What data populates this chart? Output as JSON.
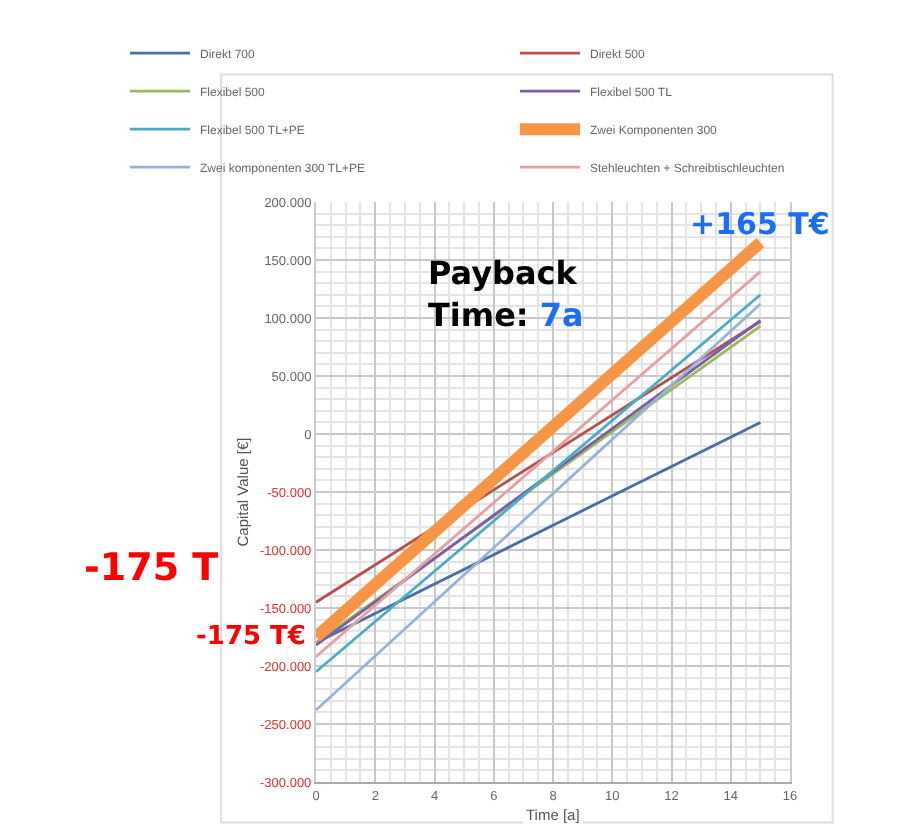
{
  "chart_data": {
    "type": "line",
    "xlabel": "Time [a]",
    "ylabel": "Capital Value [€]",
    "x": [
      0,
      15
    ],
    "series": [
      {
        "name": "Direkt 700",
        "color": "#4a6fa5",
        "values": [
          -180000,
          10000
        ]
      },
      {
        "name": "Direkt 500",
        "color": "#b5504f",
        "values": [
          -145000,
          97000
        ]
      },
      {
        "name": "Flexibel 500",
        "color": "#9bbb59",
        "values": [
          -180000,
          93000
        ]
      },
      {
        "name": "Flexibel 500 TL",
        "color": "#7a5ea8",
        "values": [
          -182000,
          98000
        ]
      },
      {
        "name": "Flexibel 500 TL+PE",
        "color": "#4bacc6",
        "values": [
          -205000,
          120000
        ]
      },
      {
        "name": "Zwei Komponenten 300",
        "color": "#f79646",
        "values": [
          -175000,
          165000
        ]
      },
      {
        "name": "Zwei komponenten 300 TL+PE",
        "color": "#95b3d7",
        "values": [
          -238000,
          112000
        ]
      },
      {
        "name": "Stehleuchten + Schreibtischleuchten",
        "color": "#e6a0a0",
        "values": [
          -192000,
          140000
        ]
      }
    ],
    "xlim": [
      0,
      16
    ],
    "xticks": [
      0,
      2,
      4,
      6,
      8,
      10,
      12,
      14,
      16
    ],
    "ylim": [
      -300000,
      200000
    ],
    "yticks": [
      {
        "value": -300000,
        "label": "-300.000"
      },
      {
        "value": -250000,
        "label": "-250.000"
      },
      {
        "value": -200000,
        "label": "-200.000"
      },
      {
        "value": -150000,
        "label": "-150.000"
      },
      {
        "value": -100000,
        "label": "-100.000"
      },
      {
        "value": -50000,
        "label": "-50.000"
      },
      0,
      {
        "value": 50000,
        "label": "50.000"
      },
      {
        "value": 100000,
        "label": "100.000"
      },
      {
        "value": 150000,
        "label": "150.000"
      },
      {
        "value": 200000,
        "label": "200.000"
      }
    ],
    "grid": true,
    "legend": "top",
    "line_style": "solid",
    "marker": "none",
    "annotations": [
      {
        "text": "+165 T€",
        "x": 15,
        "y": 165000
      },
      {
        "text": "-175 T€",
        "x": 0,
        "y": -175000
      },
      "Payback\nTime: 7a",
      "-175 T"
    ]
  }
}
